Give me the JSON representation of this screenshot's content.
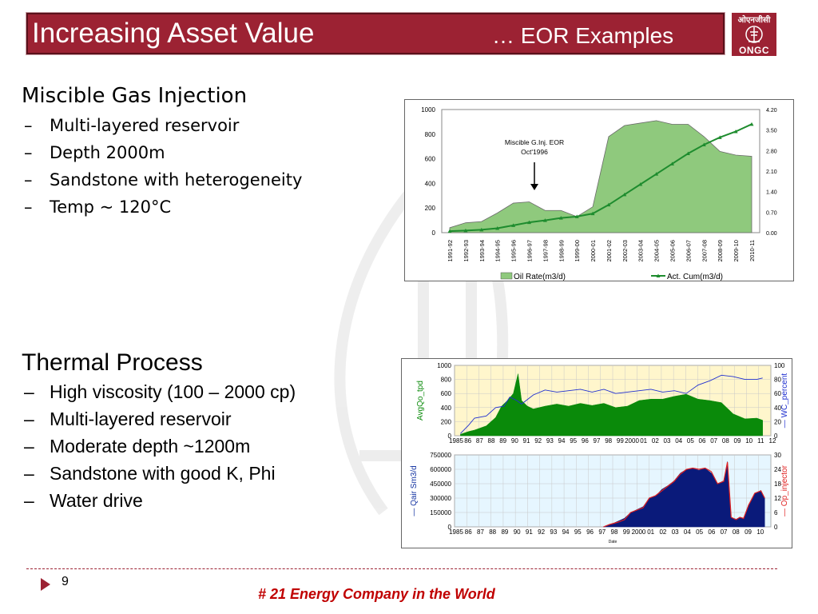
{
  "slide": {
    "title": "Increasing Asset Value",
    "subtitle": "… EOR Examples",
    "logo": {
      "hindi": "ओएनजीसी",
      "name": "ONGC"
    }
  },
  "miscible": {
    "heading": "Miscible Gas Injection",
    "bullets": [
      "Multi-layered reservoir",
      "Depth 2000m",
      "Sandstone with heterogeneity",
      "Temp ~ 120°C"
    ]
  },
  "thermal": {
    "heading": "Thermal Process",
    "bullets": [
      "High viscosity (100 – 2000 cp)",
      "Multi-layered reservoir",
      "Moderate depth ~1200m",
      "Sandstone with good K, Phi",
      "Water drive"
    ]
  },
  "footer": {
    "page": "9",
    "tagline": "# 21 Energy Company in the World"
  },
  "colors": {
    "accent": "#9c2233",
    "footer_text": "#c00000",
    "oil_area": "#8fc97d",
    "cum_line": "#1e8c2e",
    "navy": "#0a1a7a",
    "red_line": "#e02020"
  },
  "dash": "–",
  "chart_data": [
    {
      "type": "area",
      "title": "",
      "categories": [
        "1991-92",
        "1992-93",
        "1993-94",
        "1994-95",
        "1995-96",
        "1996-97",
        "1997-98",
        "1998-99",
        "1999-00",
        "2000-01",
        "2001-02",
        "2002-03",
        "2003-04",
        "2004-05",
        "2005-06",
        "2006-07",
        "2007-08",
        "2008-09",
        "2009-10",
        "2010-11"
      ],
      "series": [
        {
          "name": "Oil Rate(m3/d)",
          "values": [
            40,
            80,
            90,
            160,
            240,
            250,
            180,
            180,
            130,
            210,
            780,
            870,
            890,
            910,
            880,
            880,
            780,
            660,
            630,
            620
          ],
          "axis": "left"
        },
        {
          "name": "Act. Cum(m3/d)",
          "values": [
            0.05,
            0.07,
            0.1,
            0.15,
            0.25,
            0.35,
            0.42,
            0.5,
            0.55,
            0.65,
            0.95,
            1.3,
            1.65,
            2.0,
            2.35,
            2.7,
            3.0,
            3.25,
            3.45,
            3.7
          ],
          "axis": "right"
        }
      ],
      "ylim": [
        0,
        1000
      ],
      "y_ticks": [
        "0",
        "200",
        "400",
        "600",
        "800",
        "1000"
      ],
      "y2lim": [
        0,
        4.2
      ],
      "y2_ticks": [
        "0.00",
        "0.70",
        "1.40",
        "2.10",
        "2.80",
        "3.50",
        "4.20"
      ],
      "annotation": [
        "Miscible G.Inj. EOR",
        "Oct'1996"
      ],
      "legend_position": "bottom"
    },
    {
      "type": "area",
      "ylabel": "AvgQo_tpd",
      "y2label": "— WC_percent",
      "ylim": [
        0,
        1000
      ],
      "y_ticks": [
        "0",
        "200",
        "400",
        "600",
        "800",
        "1000"
      ],
      "y2lim": [
        0,
        100
      ],
      "y2_ticks": [
        "0",
        "20",
        "40",
        "60",
        "80",
        "100"
      ],
      "x_ticks": [
        "1985",
        "86",
        "87",
        "88",
        "89",
        "90",
        "91",
        "92",
        "93",
        "94",
        "95",
        "96",
        "97",
        "98",
        "99",
        "2000",
        "01",
        "02",
        "03",
        "04",
        "05",
        "06",
        "07",
        "08",
        "09",
        "10",
        "11",
        "12"
      ],
      "series": [
        {
          "name": "AvgQo_tpd",
          "x": [
            1985.8,
            1986.5,
            1987,
            1988,
            1988.8,
            1989.3,
            1989.8,
            1990.3,
            1990.7,
            1991,
            1991.5,
            1992,
            1993,
            1994,
            1995,
            1996,
            1997,
            1998,
            1999,
            2000,
            2001,
            2002,
            2003,
            2004,
            2005,
            2006,
            2007,
            2008,
            2009,
            2010,
            2011,
            2011.5
          ],
          "values": [
            20,
            60,
            80,
            140,
            260,
            420,
            500,
            600,
            880,
            500,
            420,
            380,
            420,
            450,
            420,
            460,
            430,
            460,
            400,
            420,
            500,
            520,
            520,
            560,
            590,
            520,
            500,
            470,
            310,
            240,
            250,
            220
          ]
        },
        {
          "name": "WC_percent",
          "x": [
            1985.8,
            1986.5,
            1987,
            1988,
            1988.8,
            1989.5,
            1990,
            1990.6,
            1991,
            1992,
            1993,
            1994,
            1995,
            1996,
            1997,
            1998,
            1999,
            2000,
            2001,
            2002,
            2003,
            2004,
            2005,
            2006,
            2007,
            2008,
            2009,
            2010,
            2011,
            2011.5
          ],
          "values": [
            3,
            15,
            25,
            28,
            40,
            42,
            55,
            50,
            45,
            58,
            65,
            62,
            64,
            66,
            62,
            66,
            60,
            62,
            64,
            66,
            62,
            64,
            60,
            72,
            78,
            86,
            84,
            80,
            80,
            82
          ]
        }
      ]
    },
    {
      "type": "area",
      "ylabel": "— Qair Sm3/d",
      "y2label": "— Op_injector",
      "xlabel": "Date",
      "ylim": [
        0,
        750000
      ],
      "y_ticks": [
        "0",
        "150000",
        "300000",
        "450000",
        "600000",
        "750000"
      ],
      "y2lim": [
        0,
        30
      ],
      "y2_ticks": [
        "0",
        "6",
        "12",
        "18",
        "24",
        "30"
      ],
      "x_ticks": [
        "1985",
        "86",
        "87",
        "88",
        "89",
        "90",
        "91",
        "92",
        "93",
        "94",
        "95",
        "96",
        "97",
        "98",
        "99",
        "2000",
        "01",
        "02",
        "03",
        "04",
        "05",
        "06",
        "07",
        "08",
        "09",
        "10"
      ],
      "series": [
        {
          "name": "Qair Sm3/d",
          "x": [
            1997.3,
            1997.8,
            1998.5,
            1999,
            1999.5,
            2000,
            2000.5,
            2001,
            2001.5,
            2002,
            2002.5,
            2003,
            2003.5,
            2004,
            2004.5,
            2005,
            2005.5,
            2006,
            2006.5,
            2007,
            2007.3,
            2007.6,
            2008,
            2008.3,
            2008.6,
            2009,
            2009.5,
            2010,
            2010.3
          ],
          "values": [
            0,
            20000,
            60000,
            90000,
            150000,
            180000,
            210000,
            300000,
            320000,
            390000,
            430000,
            480000,
            560000,
            600000,
            610000,
            590000,
            610000,
            560000,
            450000,
            480000,
            680000,
            100000,
            80000,
            100000,
            90000,
            230000,
            350000,
            380000,
            300000
          ]
        },
        {
          "name": "Op_injector",
          "x": [
            1997.3,
            1997.8,
            1998.5,
            1999,
            1999.5,
            2000,
            2000.5,
            2001,
            2001.5,
            2002,
            2002.5,
            2003,
            2003.5,
            2004,
            2004.5,
            2005,
            2005.5,
            2006,
            2006.5,
            2007,
            2007.3,
            2007.6,
            2008,
            2008.3,
            2008.6,
            2009,
            2009.5,
            2010,
            2010.3
          ],
          "values": [
            0,
            1,
            2,
            3,
            6,
            7,
            8,
            12,
            13,
            15,
            17,
            19,
            22,
            24,
            24.5,
            24,
            24.5,
            23,
            18,
            19,
            27,
            4,
            3,
            4,
            3.5,
            9,
            14,
            15,
            12
          ]
        }
      ]
    }
  ]
}
